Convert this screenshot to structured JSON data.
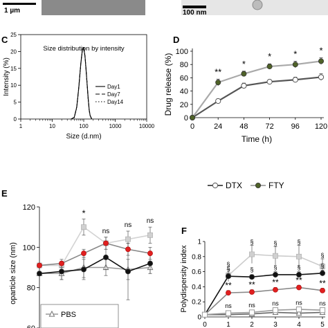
{
  "top_images": {
    "left_scale": "1 µm",
    "right_scale": "100 nm"
  },
  "chart_data": [
    {
      "panel": "C",
      "type": "line",
      "title": "Size distribution by intensity",
      "xlabel": "Size (d.nm)",
      "ylabel": "Intensity (%)",
      "x_scale": "log",
      "xlim": [
        1,
        10000
      ],
      "ylim": [
        0,
        25
      ],
      "xticks": [
        "1",
        "10",
        "100",
        "1000",
        "10000"
      ],
      "yticks": [
        "0",
        "5",
        "10",
        "15",
        "20",
        "25"
      ],
      "legend_position": "right",
      "series": [
        {
          "name": "Day1",
          "style": "solid",
          "x": [
            40,
            50,
            60,
            70,
            80,
            90,
            95,
            100,
            110,
            120,
            130,
            140,
            150,
            160,
            180
          ],
          "y": [
            0,
            0.5,
            3.5,
            9.5,
            16,
            20.3,
            21.2,
            21,
            18.5,
            14,
            9.5,
            5.5,
            2.5,
            1,
            0
          ]
        },
        {
          "name": "Day7",
          "style": "dashed",
          "x": [
            40,
            50,
            60,
            70,
            80,
            90,
            95,
            100,
            110,
            120,
            130,
            140,
            150,
            160,
            180
          ],
          "y": [
            0,
            0.5,
            3.6,
            9.6,
            16.1,
            20.4,
            21.3,
            21.1,
            18.6,
            14.1,
            9.6,
            5.6,
            2.6,
            1,
            0
          ]
        },
        {
          "name": "Day14",
          "style": "dotted",
          "x": [
            40,
            50,
            60,
            70,
            80,
            90,
            95,
            100,
            110,
            120,
            130,
            140,
            150,
            160,
            180
          ],
          "y": [
            0,
            0.4,
            3.4,
            9.4,
            15.9,
            20.2,
            21.1,
            20.9,
            18.4,
            13.9,
            9.4,
            5.4,
            2.4,
            0.9,
            0
          ]
        }
      ]
    },
    {
      "panel": "D",
      "type": "line",
      "xlabel": "Time (h)",
      "ylabel": "Drug release (%)",
      "xlim": [
        0,
        120
      ],
      "ylim": [
        0,
        100
      ],
      "xticks": [
        "0",
        "24",
        "48",
        "72",
        "96",
        "120"
      ],
      "yticks": [
        "0",
        "20",
        "40",
        "60",
        "80",
        "100"
      ],
      "legend_position": "bottom",
      "series": [
        {
          "name": "DTX",
          "color": "#555555",
          "marker": "open-circle",
          "x": [
            0,
            24,
            48,
            72,
            96,
            120
          ],
          "y": [
            0,
            25,
            48,
            54,
            57,
            61
          ],
          "err": [
            0,
            3,
            4,
            3,
            4,
            5
          ]
        },
        {
          "name": "FTY",
          "color": "#a9a9a9",
          "marker": "filled-circle",
          "marker_color": "#4f6228",
          "x": [
            0,
            24,
            48,
            72,
            96,
            120
          ],
          "y": [
            0,
            53,
            66,
            77,
            80,
            85
          ],
          "err": [
            0,
            5,
            4,
            4,
            5,
            5
          ]
        }
      ],
      "annotations": [
        {
          "x": 24,
          "text": "**"
        },
        {
          "x": 48,
          "text": "*"
        },
        {
          "x": 72,
          "text": "*"
        },
        {
          "x": 96,
          "text": "*"
        },
        {
          "x": 120,
          "text": "*"
        }
      ]
    },
    {
      "panel": "E",
      "type": "line",
      "ylabel": "oparticle size (nm)",
      "ylim": [
        60,
        120
      ],
      "yticks": [
        "60",
        "80",
        "100",
        "120"
      ],
      "legend_position": "bottom-left",
      "series": [
        {
          "name": "PBS",
          "color": "#999999",
          "marker": "open-triangle",
          "x": [
            0,
            1,
            2,
            3,
            4,
            5
          ],
          "y": [
            87,
            87,
            90,
            90,
            89,
            90
          ],
          "err": [
            0,
            3,
            5,
            4,
            5,
            3
          ]
        },
        {
          "name": "",
          "color": "#d3d3d3",
          "marker": "filled-square",
          "x": [
            0,
            1,
            2,
            3,
            4,
            5
          ],
          "y": [
            91,
            91,
            110,
            102,
            104,
            106
          ],
          "err": [
            0,
            2,
            4,
            3,
            4,
            4
          ]
        },
        {
          "name": "",
          "color": "#111111",
          "marker": "filled-circle",
          "x": [
            0,
            1,
            2,
            3,
            4,
            5
          ],
          "y": [
            87,
            88,
            89,
            95,
            88,
            92
          ],
          "err": [
            0,
            4,
            5,
            6,
            14,
            5
          ]
        },
        {
          "name": "",
          "color": "#888888",
          "marker": "red-circle",
          "x": [
            0,
            1,
            2,
            3,
            4,
            5
          ],
          "y": [
            91,
            92,
            97,
            102,
            99,
            97
          ],
          "err": [
            0,
            2,
            2,
            3,
            3,
            3
          ]
        }
      ],
      "annotations": [
        {
          "x": 2,
          "text": "*"
        },
        {
          "x": 3,
          "text": "ns"
        },
        {
          "x": 4,
          "text": "ns"
        },
        {
          "x": 5,
          "text": "ns"
        }
      ]
    },
    {
      "panel": "F",
      "type": "line",
      "ylabel": "Polydispersity index",
      "xlim": [
        0,
        5
      ],
      "ylim": [
        0,
        1
      ],
      "xticks": [
        "0",
        "1",
        "2",
        "3",
        "4",
        "5"
      ],
      "yticks": [
        "0",
        "0.2",
        "0.4",
        "0.6",
        "0.8",
        "1"
      ],
      "series": [
        {
          "name": "",
          "color": "#cccccc",
          "marker": "filled-square",
          "x": [
            0,
            1,
            2,
            3,
            4,
            5
          ],
          "y": [
            0.03,
            0.55,
            0.83,
            0.81,
            0.8,
            0.67
          ],
          "err": [
            0,
            0.08,
            0.12,
            0.12,
            0.15,
            0.1
          ]
        },
        {
          "name": "",
          "color": "#111111",
          "marker": "filled-circle",
          "x": [
            0,
            1,
            2,
            3,
            4,
            5
          ],
          "y": [
            0.03,
            0.54,
            0.53,
            0.56,
            0.56,
            0.58
          ],
          "err": [
            0,
            0.04,
            0.03,
            0.04,
            0.04,
            0.04
          ]
        },
        {
          "name": "",
          "color": "#888888",
          "marker": "red-circle",
          "x": [
            0,
            1,
            2,
            3,
            4,
            5
          ],
          "y": [
            0.03,
            0.32,
            0.33,
            0.36,
            0.39,
            0.35
          ],
          "err": [
            0,
            0.03,
            0.03,
            0.03,
            0.03,
            0.03
          ]
        },
        {
          "name": "",
          "color": "#666666",
          "marker": "open-triangle",
          "x": [
            0,
            1,
            2,
            3,
            4,
            5
          ],
          "y": [
            0.03,
            0.03,
            0.04,
            0.06,
            0.05,
            0.06
          ],
          "err": [
            0,
            0.02,
            0.02,
            0.02,
            0.02,
            0.02
          ]
        },
        {
          "name": "",
          "color": "#999999",
          "marker": "open-square",
          "x": [
            0,
            1,
            2,
            3,
            4,
            5
          ],
          "y": [
            0.03,
            0.05,
            0.06,
            0.09,
            0.1,
            0.09
          ],
          "err": [
            0,
            0.02,
            0.02,
            0.02,
            0.02,
            0.02
          ]
        }
      ],
      "annotations": [
        {
          "x": 1,
          "y": 0.67,
          "text": "§"
        },
        {
          "x": 2,
          "y": 0.97,
          "text": "§"
        },
        {
          "x": 3,
          "y": 0.95,
          "text": "§"
        },
        {
          "x": 4,
          "y": 0.97,
          "text": "§"
        },
        {
          "x": 5,
          "y": 0.79,
          "text": "§"
        },
        {
          "x": 1,
          "y": 0.61,
          "text": "§"
        },
        {
          "x": 2,
          "y": 0.6,
          "text": "§"
        },
        {
          "x": 3,
          "y": 0.63,
          "text": "§"
        },
        {
          "x": 4,
          "y": 0.63,
          "text": "§"
        },
        {
          "x": 5,
          "y": 0.65,
          "text": "§"
        },
        {
          "x": 1,
          "y": 0.38,
          "text": "**"
        },
        {
          "x": 2,
          "y": 0.39,
          "text": "**"
        },
        {
          "x": 3,
          "y": 0.42,
          "text": "**"
        },
        {
          "x": 4,
          "y": 0.45,
          "text": "**"
        },
        {
          "x": 5,
          "y": 0.41,
          "text": "**"
        },
        {
          "x": 1,
          "y": 0.12,
          "text": "ns"
        },
        {
          "x": 2,
          "y": 0.13,
          "text": "ns"
        },
        {
          "x": 3,
          "y": 0.15,
          "text": "ns"
        },
        {
          "x": 4,
          "y": 0.16,
          "text": "ns"
        },
        {
          "x": 5,
          "y": 0.15,
          "text": "ns"
        }
      ]
    }
  ]
}
